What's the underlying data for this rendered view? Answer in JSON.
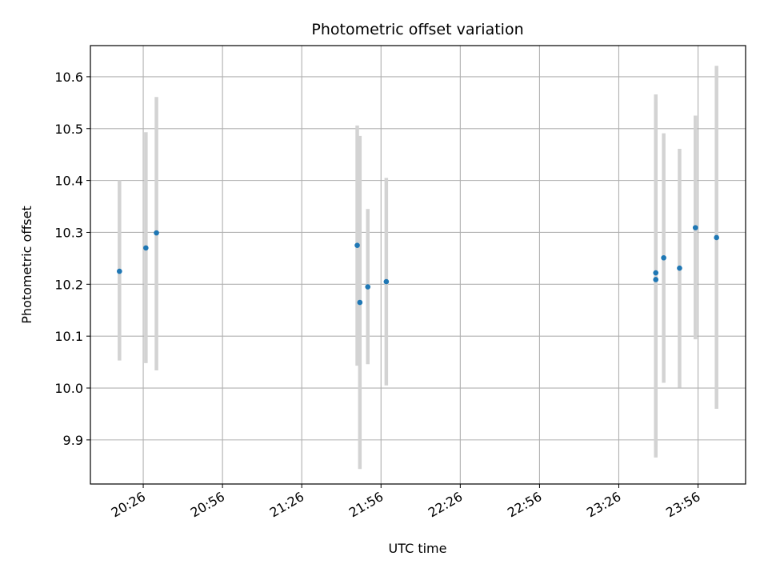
{
  "chart_data": {
    "type": "scatter",
    "title": "Photometric offset variation",
    "xlabel": "UTC time",
    "ylabel": "Photometric offset",
    "x_tick_labels": [
      "20:26",
      "20:56",
      "21:26",
      "21:56",
      "22:26",
      "22:56",
      "23:26",
      "23:56"
    ],
    "y_tick_labels": [
      "9.9",
      "10.0",
      "10.1",
      "10.2",
      "10.3",
      "10.4",
      "10.5",
      "10.6"
    ],
    "xlim": [
      "20:06",
      "00:14"
    ],
    "ylim": [
      9.815,
      10.66
    ],
    "grid": true,
    "legend": false,
    "colors": {
      "points": "#1f77b4",
      "errorbars": "#d3d3d3",
      "grid": "#b0b0b0"
    },
    "points": [
      {
        "x": "20:17",
        "y": 10.225,
        "ylow": 10.053,
        "yhigh": 10.4
      },
      {
        "x": "20:27",
        "y": 10.27,
        "ylow": 10.048,
        "yhigh": 10.493
      },
      {
        "x": "20:31",
        "y": 10.299,
        "ylow": 10.034,
        "yhigh": 10.561
      },
      {
        "x": "21:47",
        "y": 10.275,
        "ylow": 10.043,
        "yhigh": 10.506
      },
      {
        "x": "21:48",
        "y": 10.165,
        "ylow": 9.844,
        "yhigh": 10.486
      },
      {
        "x": "21:51",
        "y": 10.195,
        "ylow": 10.046,
        "yhigh": 10.345
      },
      {
        "x": "21:58",
        "y": 10.205,
        "ylow": 10.005,
        "yhigh": 10.405
      },
      {
        "x": "23:40",
        "y": 10.222,
        "ylow": 9.885,
        "yhigh": 10.566
      },
      {
        "x": "23:40",
        "y": 10.209,
        "ylow": 9.866,
        "yhigh": 10.552
      },
      {
        "x": "23:43",
        "y": 10.251,
        "ylow": 10.01,
        "yhigh": 10.491
      },
      {
        "x": "23:49",
        "y": 10.231,
        "ylow": 10.001,
        "yhigh": 10.461
      },
      {
        "x": "23:55",
        "y": 10.309,
        "ylow": 10.094,
        "yhigh": 10.525
      },
      {
        "x": "00:03",
        "y": 10.29,
        "ylow": 9.96,
        "yhigh": 10.621
      }
    ]
  }
}
